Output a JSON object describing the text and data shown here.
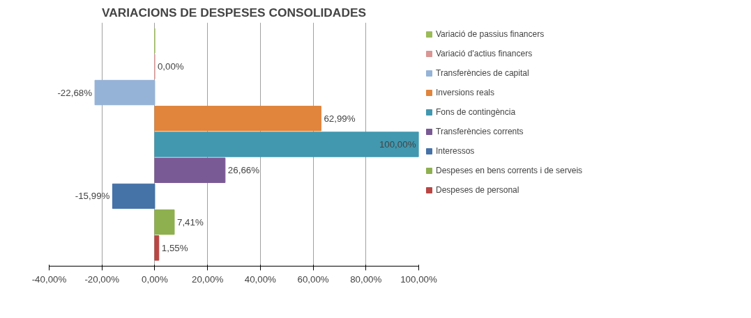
{
  "chart_data": {
    "type": "bar",
    "orientation": "horizontal",
    "title": "VARIACIONS DE DESPESES CONSOLIDADES",
    "categories": [
      null,
      null,
      null,
      null,
      null,
      null,
      null,
      null,
      null
    ],
    "series": [
      {
        "name": "Variació de passius financers",
        "color": "#9bbb59",
        "values": [
          0,
          null,
          null,
          null,
          null,
          null,
          null,
          null,
          null
        ]
      },
      {
        "name": "Variació d'actius financers",
        "color": "#d99694",
        "values": [
          null,
          0,
          null,
          null,
          null,
          null,
          null,
          null,
          null
        ],
        "value_labels": [
          null,
          "0,00%",
          null,
          null,
          null,
          null,
          null,
          null,
          null
        ]
      },
      {
        "name": "Transferències de capital",
        "color": "#95b3d7",
        "values": [
          null,
          null,
          -22.68,
          null,
          null,
          null,
          null,
          null,
          null
        ],
        "value_labels": [
          null,
          null,
          "-22,68%",
          null,
          null,
          null,
          null,
          null,
          null
        ]
      },
      {
        "name": "Inversions reals",
        "color": "#e0853b",
        "values": [
          null,
          null,
          null,
          62.99,
          null,
          null,
          null,
          null,
          null
        ],
        "value_labels": [
          null,
          null,
          null,
          "62,99%",
          null,
          null,
          null,
          null,
          null
        ]
      },
      {
        "name": "Fons de contingència",
        "color": "#4198af",
        "values": [
          null,
          null,
          null,
          null,
          100,
          null,
          null,
          null,
          null
        ],
        "value_labels": [
          null,
          null,
          null,
          null,
          "100,00%",
          null,
          null,
          null,
          null
        ]
      },
      {
        "name": "Transferències corrents",
        "color": "#7a5a95",
        "values": [
          null,
          null,
          null,
          null,
          null,
          26.66,
          null,
          null,
          null
        ],
        "value_labels": [
          null,
          null,
          null,
          null,
          null,
          "26,66%",
          null,
          null,
          null
        ]
      },
      {
        "name": "Interessos",
        "color": "#4572a7",
        "values": [
          null,
          null,
          null,
          null,
          null,
          null,
          -15.99,
          null,
          null
        ],
        "value_labels": [
          null,
          null,
          null,
          null,
          null,
          null,
          "-15,99%",
          null,
          null
        ]
      },
      {
        "name": "Despeses en bens corrents i de serveis",
        "color": "#8fb04f",
        "values": [
          null,
          null,
          null,
          null,
          null,
          null,
          null,
          7.41,
          null
        ],
        "value_labels": [
          null,
          null,
          null,
          null,
          null,
          null,
          null,
          "7,41%",
          null
        ]
      },
      {
        "name": "Despeses de personal",
        "color": "#b94643",
        "values": [
          null,
          null,
          null,
          null,
          null,
          null,
          null,
          null,
          1.55
        ],
        "value_labels": [
          null,
          null,
          null,
          null,
          null,
          null,
          null,
          null,
          "1,55%"
        ]
      }
    ],
    "xlim": [
      -40,
      100
    ],
    "xticks": [
      {
        "value": -40,
        "label": "-40,00%"
      },
      {
        "value": -20,
        "label": "-20,00%"
      },
      {
        "value": 0,
        "label": "0,00%"
      },
      {
        "value": 20,
        "label": "20,00%"
      },
      {
        "value": 40,
        "label": "40,00%"
      },
      {
        "value": 60,
        "label": "60,00%"
      },
      {
        "value": 80,
        "label": "80,00%"
      },
      {
        "value": 100,
        "label": "100,00%"
      }
    ],
    "grid": "x",
    "legend": "right",
    "tick_labels": "x"
  }
}
